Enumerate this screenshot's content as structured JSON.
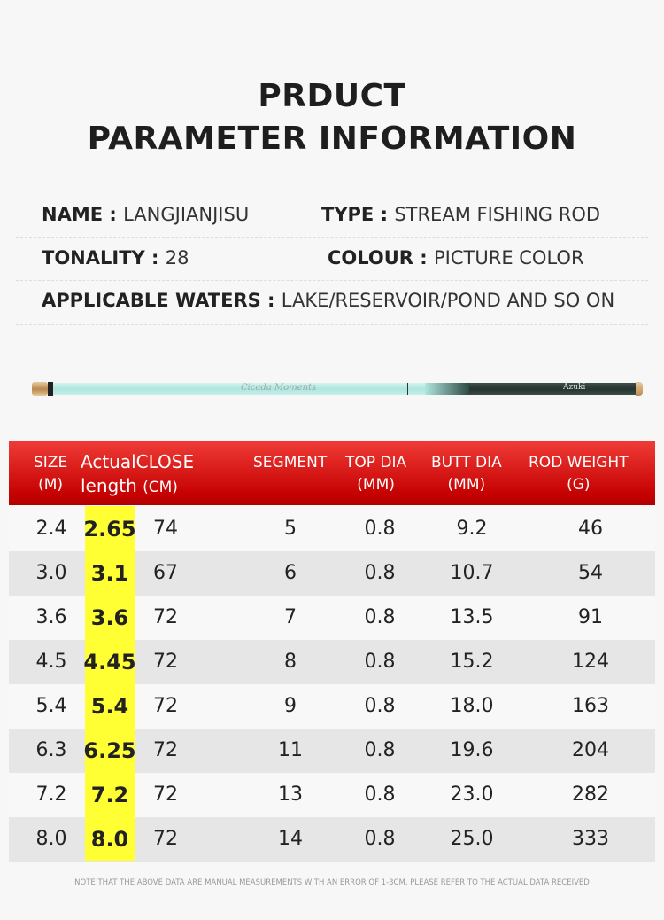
{
  "title": {
    "line1": "PRDUCT",
    "line2": "PARAMETER INFORMATION"
  },
  "info": [
    {
      "label": "NAME",
      "value": "LANGJIANJISU"
    },
    {
      "label": "TYPE",
      "value": "STREAM FISHING ROD"
    },
    {
      "label": "TONALITY",
      "value": "28"
    },
    {
      "label": "COLOUR",
      "value": "PICTURE COLOR"
    },
    {
      "label": "APPLICABLE WATERS",
      "value": "LAKE/RESERVOIR/POND AND SO ON"
    }
  ],
  "rod_image": {
    "brand_text": "Azuki",
    "script_text": "Cicada Moments"
  },
  "colors": {
    "header_red": "#d40f0b",
    "highlight_yellow": "#ffff33",
    "row_alt": "#e6e6e6"
  },
  "table": {
    "headers": {
      "size": "SIZE",
      "size_unit": "(M)",
      "actual": "Actual",
      "actual2": "length",
      "close": "CLOSE",
      "close_unit": "(CM)",
      "segment": "SEGMENT",
      "top": "TOP DIA",
      "top_unit": "(MM)",
      "butt": "BUTT DIA",
      "butt_unit": "(MM)",
      "weight": "ROD WEIGHT",
      "weight_unit": "(G)"
    },
    "rows": [
      [
        "2.4",
        "2.65",
        "74",
        "5",
        "0.8",
        "9.2",
        "46"
      ],
      [
        "3.0",
        "3.1",
        "67",
        "6",
        "0.8",
        "10.7",
        "54"
      ],
      [
        "3.6",
        "3.6",
        "72",
        "7",
        "0.8",
        "13.5",
        "91"
      ],
      [
        "4.5",
        "4.45",
        "72",
        "8",
        "0.8",
        "15.2",
        "124"
      ],
      [
        "5.4",
        "5.4",
        "72",
        "9",
        "0.8",
        "18.0",
        "163"
      ],
      [
        "6.3",
        "6.25",
        "72",
        "11",
        "0.8",
        "19.6",
        "204"
      ],
      [
        "7.2",
        "7.2",
        "72",
        "13",
        "0.8",
        "23.0",
        "282"
      ],
      [
        "8.0",
        "8.0",
        "72",
        "14",
        "0.8",
        "25.0",
        "333"
      ]
    ]
  },
  "note": "NOTE THAT THE ABOVE DATA ARE MANUAL MEASUREMENTS WITH AN ERROR OF 1-3CM. PLEASE REFER TO THE ACTUAL DATA RECEIVED"
}
